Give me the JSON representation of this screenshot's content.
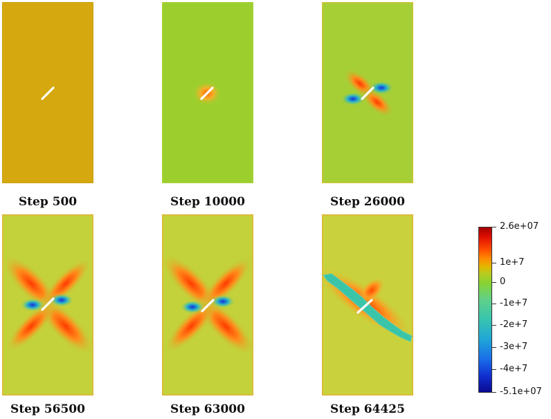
{
  "panels": [
    {
      "caption": "Step 500"
    },
    {
      "caption": "Step 10000"
    },
    {
      "caption": "Step 26000"
    },
    {
      "caption": "Step 56500"
    },
    {
      "caption": "Step 63000"
    },
    {
      "caption": "Step 64425"
    }
  ],
  "colorbar": {
    "max_label": "2.6e+07",
    "min_label": "-5.1e+07",
    "ticks": [
      "1e+7",
      "0",
      "-1e+7",
      "-2e+7",
      "-3e+7",
      "-4e+7"
    ]
  }
}
